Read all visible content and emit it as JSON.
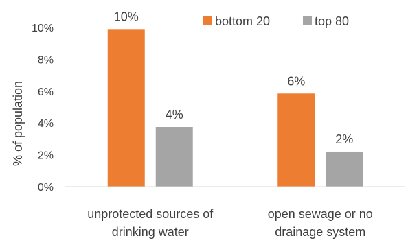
{
  "chart_data": {
    "type": "bar",
    "categories": [
      [
        "unprotected sources of",
        "drinking water"
      ],
      [
        "open sewage or no",
        "drainage system"
      ]
    ],
    "series": [
      {
        "name": "bottom 20",
        "color": "#ED7D31",
        "values": [
          9.9,
          5.85
        ],
        "labels": [
          "10%",
          "6%"
        ]
      },
      {
        "name": "top 80",
        "color": "#A5A5A5",
        "values": [
          3.75,
          2.2
        ],
        "labels": [
          "4%",
          "2%"
        ]
      }
    ],
    "ylabel": "% of population",
    "ylim": [
      0,
      10
    ],
    "yticks": [
      0,
      2,
      4,
      6,
      8,
      10
    ],
    "ytick_labels": [
      "0%",
      "2%",
      "4%",
      "6%",
      "8%",
      "10%"
    ],
    "legend_position": "top-right",
    "grid": false
  }
}
